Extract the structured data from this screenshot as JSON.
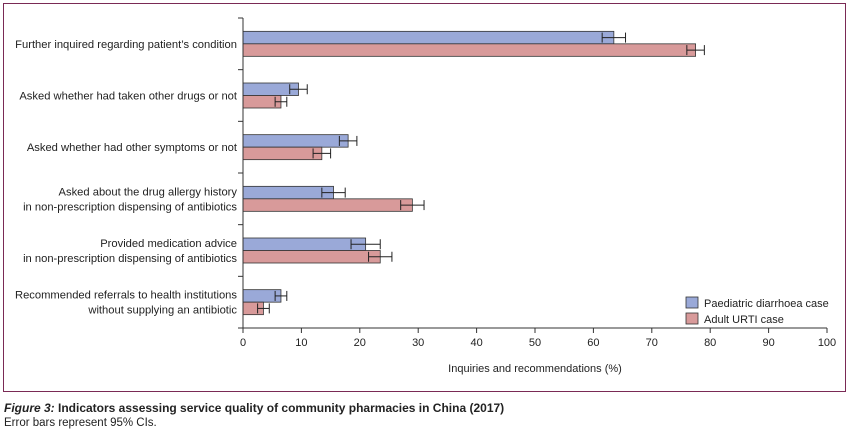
{
  "chart_data": {
    "type": "bar",
    "orientation": "horizontal",
    "categories": [
      [
        "Further inquired regarding patient’s condition"
      ],
      [
        "Asked whether had taken other drugs or not"
      ],
      [
        "Asked whether had other symptoms or not"
      ],
      [
        "Asked about the drug allergy history",
        "in non-prescription dispensing of antibiotics"
      ],
      [
        "Provided medication advice",
        "in non-prescription dispensing of antibiotics"
      ],
      [
        "Recommended referrals to health institutions",
        "without supplying an antibiotic"
      ]
    ],
    "series": [
      {
        "name": "Paediatric diarrhoea case",
        "color": "#9aa9d8",
        "values": [
          63.5,
          9.5,
          18.0,
          15.5,
          21.0,
          6.5
        ],
        "ci_low": [
          61.5,
          8.0,
          16.5,
          13.5,
          18.5,
          5.5
        ],
        "ci_high": [
          65.5,
          11.0,
          19.5,
          17.5,
          23.5,
          7.5
        ]
      },
      {
        "name": "Adult URTI case",
        "color": "#d89a9a",
        "values": [
          77.5,
          6.5,
          13.5,
          29.0,
          23.5,
          3.5
        ],
        "ci_low": [
          76.0,
          5.5,
          12.0,
          27.0,
          21.5,
          2.5
        ],
        "ci_high": [
          79.0,
          7.5,
          15.0,
          31.0,
          25.5,
          4.5
        ]
      }
    ],
    "xlim": [
      0,
      100
    ],
    "xticks": [
      0,
      10,
      20,
      30,
      40,
      50,
      60,
      70,
      80,
      90,
      100
    ],
    "xlabel": "Inquiries and recommendations (%)",
    "ylabel": "",
    "grid": false,
    "legend_position": "bottom-right"
  },
  "caption": {
    "figure_label": "Figure 3:",
    "title": " Indicators assessing service quality of community pharmacies in China (2017)",
    "note": "Error bars represent 95% CIs."
  }
}
